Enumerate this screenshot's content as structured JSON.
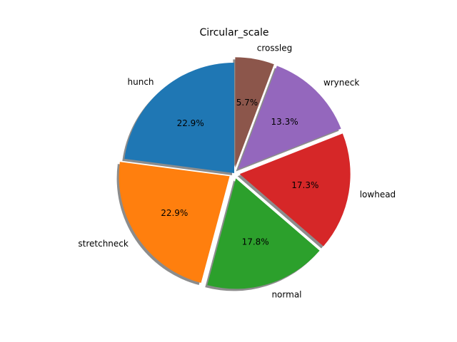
{
  "chart_data": {
    "type": "pie",
    "title": "Circular_scale",
    "start_angle_deg": 90,
    "direction": "counterclockwise",
    "shadow": true,
    "slices": [
      {
        "label": "hunch",
        "value": 22.9,
        "pct_label": "22.9%",
        "color": "#1f77b4",
        "explode": 0.0
      },
      {
        "label": "stretchneck",
        "value": 22.9,
        "pct_label": "22.9%",
        "color": "#ff7f0e",
        "explode": 0.05
      },
      {
        "label": "normal",
        "value": 17.8,
        "pct_label": "17.8%",
        "color": "#2ca02c",
        "explode": 0.05
      },
      {
        "label": "lowhead",
        "value": 17.3,
        "pct_label": "17.3%",
        "color": "#d62728",
        "explode": 0.05
      },
      {
        "label": "wryneck",
        "value": 13.3,
        "pct_label": "13.3%",
        "color": "#9467bd",
        "explode": 0.05
      },
      {
        "label": "crossleg",
        "value": 5.7,
        "pct_label": "5.7%",
        "color": "#8c564b",
        "explode": 0.05
      }
    ]
  }
}
